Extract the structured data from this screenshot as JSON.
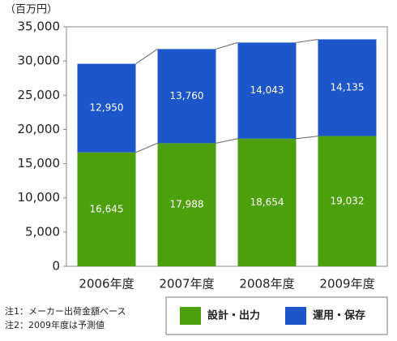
{
  "chart_data": {
    "type": "stacked-bar",
    "y_axis_label": "（百万円）",
    "categories": [
      "2006年度",
      "2007年度",
      "2008年度",
      "2009年度"
    ],
    "series": [
      {
        "name": "設計・出力",
        "color": "#4e9f0c",
        "values": [
          16645,
          17988,
          18654,
          19032
        ],
        "value_labels": [
          "16,645",
          "17,988",
          "18,654",
          "19,032"
        ]
      },
      {
        "name": "運用・保存",
        "color": "#1c56c9",
        "values": [
          12950,
          13760,
          14043,
          14135
        ],
        "value_labels": [
          "12,950",
          "13,760",
          "14,043",
          "14,135"
        ]
      }
    ],
    "ylim": [
      0,
      35000
    ],
    "yticks": [
      0,
      {
        "value": 5000,
        "label": "5,000"
      },
      {
        "value": 10000,
        "label": "10,000"
      },
      {
        "value": 15000,
        "label": "15,000"
      },
      {
        "value": 20000,
        "label": "20,000"
      },
      {
        "value": 25000,
        "label": "25,000"
      },
      {
        "value": 30000,
        "label": "30,000"
      },
      {
        "value": 35000,
        "label": "35,000"
      }
    ],
    "grid": false,
    "connector_lines": true,
    "notes": [
      "注1：メーカー出荷金額ベース",
      "注2：2009年度は予測値"
    ]
  }
}
